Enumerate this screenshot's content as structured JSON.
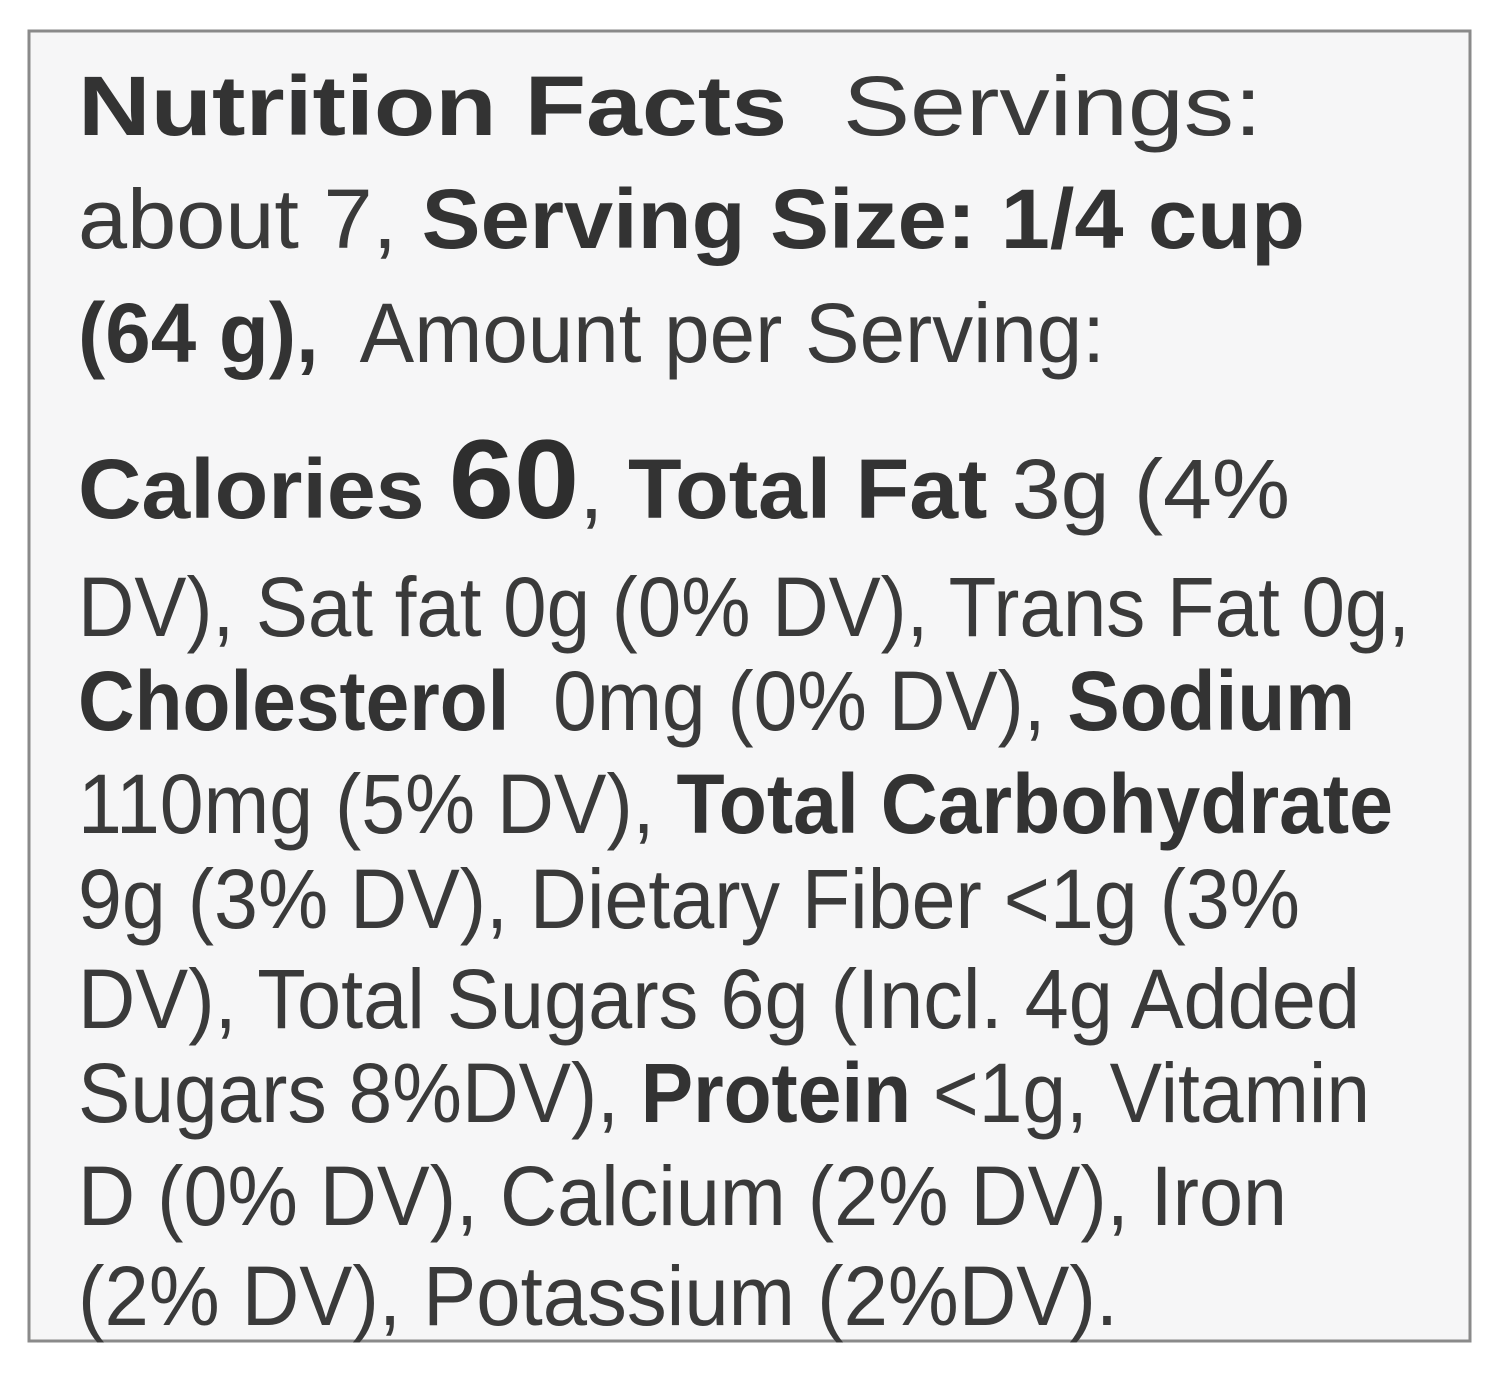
{
  "label": {
    "lines": [
      [
        {
          "text": "Nutrition Facts",
          "style": "bold"
        },
        {
          "text": "  Servings:",
          "style": "regular"
        }
      ],
      [
        {
          "text": "about 7, ",
          "style": "regular"
        },
        {
          "text": "Serving Size: 1/4 cup",
          "style": "bold"
        }
      ],
      [
        {
          "text": "(64 g),",
          "style": "bold"
        },
        {
          "text": "  Amount per Serving:",
          "style": "regular"
        }
      ],
      [
        {
          "text": "Calories ",
          "style": "bold"
        },
        {
          "text": "60",
          "style": "large"
        },
        {
          "text": ", ",
          "style": "regular"
        },
        {
          "text": "Total Fat",
          "style": "bold"
        },
        {
          "text": " 3g (4%",
          "style": "regular"
        }
      ],
      [
        {
          "text": "DV), Sat fat 0g (0% DV), Trans Fat 0g,",
          "style": "regular"
        }
      ],
      [
        {
          "text": "Cholesterol",
          "style": "bold"
        },
        {
          "text": "  0mg (0% DV), ",
          "style": "regular"
        },
        {
          "text": "Sodium",
          "style": "bold"
        }
      ],
      [
        {
          "text": "110mg (5% DV), ",
          "style": "regular"
        },
        {
          "text": "Total Carbohydrate",
          "style": "bold"
        }
      ],
      [
        {
          "text": "9g (3% DV), Dietary Fiber <1g (3%",
          "style": "regular"
        }
      ],
      [
        {
          "text": "DV), Total Sugars 6g (Incl. 4g Added",
          "style": "regular"
        }
      ],
      [
        {
          "text": "Sugars 8%DV), ",
          "style": "regular"
        },
        {
          "text": "Protein",
          "style": "bold"
        },
        {
          "text": " <1g, Vitamin",
          "style": "regular"
        }
      ],
      [
        {
          "text": "D (0% DV), Calcium (2% DV), Iron",
          "style": "regular"
        }
      ],
      [
        {
          "text": "(2% DV), Potassium (2%DV).",
          "style": "regular"
        }
      ]
    ]
  }
}
